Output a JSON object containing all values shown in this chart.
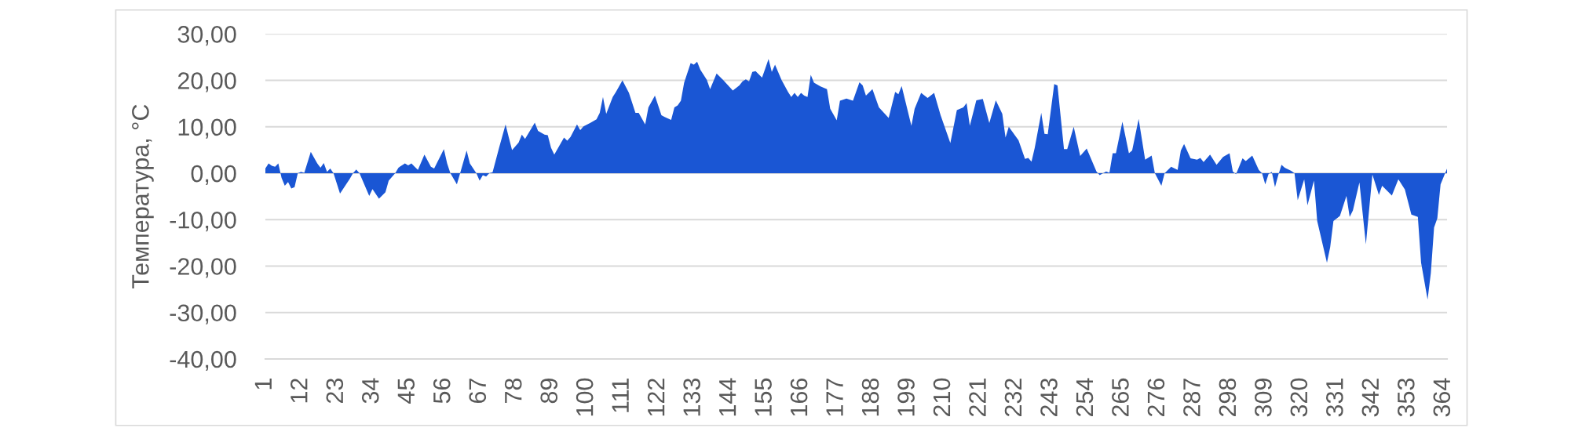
{
  "chart_data": {
    "type": "area",
    "ylabel": "Температура, °C",
    "x": [
      1,
      2,
      3,
      4,
      5,
      6,
      7,
      8,
      9,
      10,
      11,
      12,
      13,
      15,
      17,
      18,
      19,
      20,
      21,
      22,
      24,
      27,
      28,
      29,
      30,
      33,
      34,
      36,
      38,
      39,
      41,
      42,
      44,
      45,
      46,
      47,
      48,
      50,
      52,
      53,
      56,
      57,
      58,
      60,
      61,
      63,
      64,
      66,
      67,
      68,
      69,
      70,
      71,
      73,
      75,
      76,
      77,
      79,
      80,
      81,
      84,
      85,
      87,
      88,
      89,
      90,
      93,
      94,
      95,
      97,
      98,
      99,
      101,
      103,
      104,
      105,
      106,
      108,
      109,
      111,
      113,
      115,
      116,
      118,
      119,
      121,
      123,
      124,
      126,
      127,
      128,
      129,
      130,
      132,
      133,
      134,
      135,
      137,
      138,
      140,
      142,
      145,
      147,
      148,
      149,
      150,
      151,
      152,
      154,
      155,
      156,
      157,
      158,
      160,
      162,
      163,
      164,
      165,
      166,
      167,
      168,
      169,
      170,
      172,
      174,
      175,
      177,
      178,
      180,
      182,
      184,
      185,
      186,
      188,
      190,
      193,
      195,
      196,
      197,
      200,
      201,
      203,
      205,
      207,
      209,
      212,
      214,
      216,
      217,
      218,
      220,
      222,
      224,
      226,
      228,
      229,
      230,
      233,
      235,
      236,
      237,
      238,
      240,
      241,
      242,
      244,
      245,
      247,
      248,
      250,
      252,
      254,
      257,
      258,
      260,
      261,
      262,
      263,
      265,
      267,
      268,
      270,
      272,
      274,
      275,
      277,
      278,
      280,
      282,
      283,
      284,
      286,
      288,
      289,
      290,
      292,
      294,
      296,
      298,
      299,
      300,
      302,
      303,
      305,
      307,
      308,
      309,
      310,
      311,
      312,
      313,
      314,
      315,
      317,
      318,
      319,
      321,
      322,
      324,
      325,
      328,
      329,
      330,
      332,
      334,
      335,
      336,
      338,
      340,
      342,
      344,
      345,
      348,
      350,
      352,
      354,
      356,
      357,
      359,
      360,
      361,
      362,
      363,
      365
    ],
    "series": [
      {
        "color": "#1a56d4",
        "values": [
          1.0,
          2.1,
          1.6,
          1.4,
          2.1,
          -1.0,
          -2.7,
          -1.9,
          -3.3,
          -3.0,
          0.0,
          0.3,
          0.1,
          4.6,
          2.1,
          1.2,
          2.2,
          0.3,
          1.0,
          0.0,
          -4.4,
          -1.2,
          0.0,
          0.8,
          0.0,
          -4.9,
          -3.4,
          -5.5,
          -4.1,
          -1.6,
          0.0,
          1.2,
          2.1,
          1.7,
          2.1,
          1.4,
          0.7,
          4.0,
          1.4,
          1.0,
          5.2,
          2.1,
          0.0,
          -2.4,
          0.0,
          4.9,
          2.1,
          0.0,
          -1.6,
          -0.4,
          -0.7,
          0.0,
          0.2,
          5.5,
          10.5,
          7.7,
          5.0,
          6.6,
          8.3,
          7.4,
          10.9,
          9.1,
          8.3,
          8.2,
          5.5,
          4.0,
          7.7,
          7.0,
          7.8,
          10.5,
          9.3,
          10.1,
          10.8,
          11.6,
          13.0,
          16.4,
          12.8,
          16.4,
          17.5,
          20.0,
          17.3,
          13.0,
          13.0,
          10.5,
          14.2,
          16.7,
          12.5,
          12.1,
          11.5,
          14.2,
          14.6,
          15.6,
          19.5,
          23.7,
          23.4,
          24.0,
          22.3,
          20.1,
          18.1,
          21.5,
          20.1,
          17.8,
          18.9,
          19.8,
          20.2,
          19.8,
          21.8,
          22.0,
          20.6,
          22.6,
          24.6,
          21.8,
          23.4,
          20.1,
          17.5,
          16.4,
          17.3,
          16.4,
          17.3,
          16.7,
          16.4,
          21.2,
          19.5,
          18.7,
          18.1,
          13.9,
          11.4,
          15.6,
          16.1,
          15.6,
          19.6,
          18.9,
          16.7,
          18.1,
          14.2,
          11.9,
          17.5,
          17.0,
          18.8,
          10.2,
          13.9,
          17.3,
          16.2,
          17.3,
          12.5,
          6.5,
          13.6,
          14.2,
          15.1,
          10.2,
          15.7,
          16.0,
          10.8,
          15.7,
          12.8,
          7.7,
          10.0,
          7.1,
          3.1,
          3.3,
          2.5,
          5.5,
          13.0,
          8.5,
          8.4,
          19.2,
          18.9,
          5.2,
          5.2,
          10.0,
          3.7,
          5.3,
          0.4,
          -0.4,
          0.4,
          0.1,
          4.3,
          4.3,
          11.1,
          4.3,
          4.9,
          11.7,
          2.9,
          3.8,
          0.0,
          -2.7,
          0.0,
          1.4,
          0.7,
          4.9,
          6.3,
          3.2,
          2.9,
          3.3,
          2.4,
          4.0,
          1.8,
          3.5,
          4.3,
          0.4,
          -0.2,
          3.2,
          2.6,
          3.8,
          0.7,
          0.0,
          -2.4,
          -0.2,
          0.3,
          -3.0,
          -0.4,
          1.8,
          1.2,
          0.5,
          0.0,
          -5.8,
          -1.3,
          -6.9,
          -1.6,
          -10.3,
          -19.3,
          -15.9,
          -10.3,
          -9.2,
          -4.9,
          -9.4,
          -8.0,
          -2.0,
          -15.3,
          -0.3,
          -4.7,
          -2.7,
          -4.8,
          -1.3,
          -3.5,
          -8.9,
          -9.4,
          -19.3,
          -27.2,
          -21.5,
          -11.7,
          -9.7,
          -2.4,
          1.0
        ]
      }
    ],
    "xlim": [
      1,
      365
    ],
    "xticks": [
      1,
      12,
      23,
      34,
      45,
      56,
      67,
      78,
      89,
      100,
      111,
      122,
      133,
      144,
      155,
      166,
      177,
      188,
      199,
      210,
      221,
      232,
      243,
      254,
      265,
      276,
      287,
      298,
      309,
      320,
      331,
      342,
      353,
      364
    ],
    "ylim": [
      -40,
      30
    ],
    "yticks": [
      {
        "value": 30,
        "label": "30,00"
      },
      {
        "value": 20,
        "label": "20,00"
      },
      {
        "value": 10,
        "label": "10,00"
      },
      {
        "value": 0,
        "label": "0,00"
      },
      {
        "value": -10,
        "label": "-10,00"
      },
      {
        "value": -20,
        "label": "-20,00"
      },
      {
        "value": -30,
        "label": "-30,00"
      },
      {
        "value": -40,
        "label": "-40,00"
      }
    ],
    "grid": "y"
  }
}
